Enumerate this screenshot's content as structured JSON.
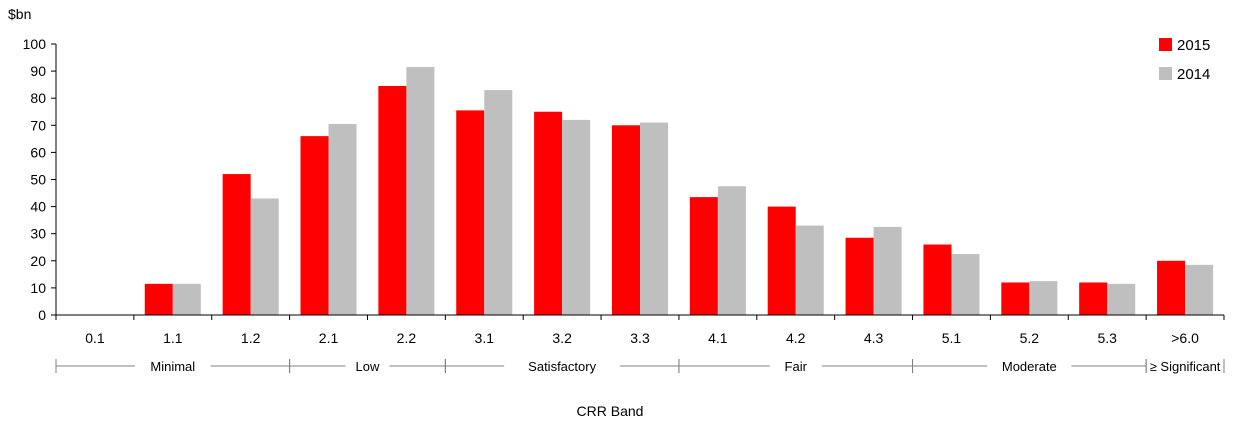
{
  "chart_data": {
    "type": "bar",
    "ylabel": "$bn",
    "xlabel": "CRR Band",
    "ylim": [
      0,
      100
    ],
    "yticks": [
      0,
      10,
      20,
      30,
      40,
      50,
      60,
      70,
      80,
      90,
      100
    ],
    "categories": [
      "0.1",
      "1.1",
      "1.2",
      "2.1",
      "2.2",
      "3.1",
      "3.2",
      "3.3",
      "4.1",
      "4.2",
      "4.3",
      "5.1",
      "5.2",
      "5.3",
      ">6.0"
    ],
    "series": [
      {
        "name": "2015",
        "color": "#ff0000",
        "values": [
          0,
          11.5,
          52,
          66,
          84.5,
          75.5,
          75,
          70,
          43.5,
          40,
          28.5,
          26,
          12,
          12,
          20
        ]
      },
      {
        "name": "2014",
        "color": "#bfbfbf",
        "values": [
          0,
          11.5,
          43,
          70.5,
          91.5,
          83,
          72,
          71,
          47.5,
          33,
          32.5,
          22.5,
          12.5,
          11.5,
          18.5
        ]
      }
    ],
    "groups": [
      {
        "label": "Minimal",
        "start": 0,
        "end": 2
      },
      {
        "label": "Low",
        "start": 3,
        "end": 4
      },
      {
        "label": "Satisfactory",
        "start": 5,
        "end": 7
      },
      {
        "label": "Fair",
        "start": 8,
        "end": 10
      },
      {
        "label": "Moderate",
        "start": 11,
        "end": 13
      },
      {
        "label": "≥ Significant",
        "start": 14,
        "end": 14
      }
    ],
    "legend_position": "top-right",
    "grid": false
  }
}
